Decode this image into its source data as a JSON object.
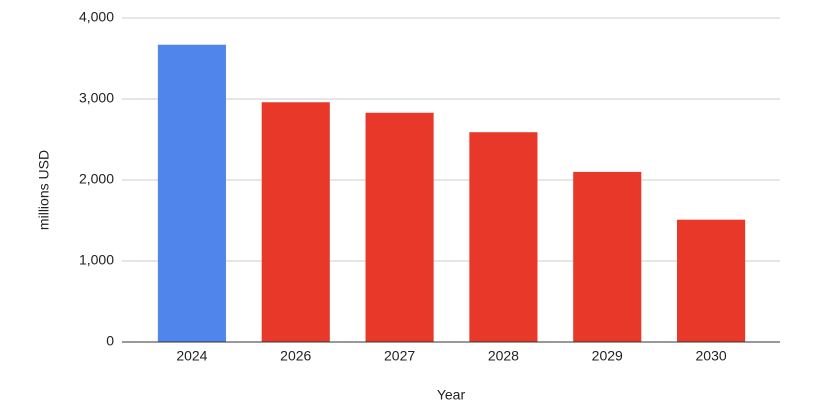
{
  "chart_data": {
    "type": "bar",
    "x_label": "Year",
    "y_label": "millions USD",
    "categories": [
      "2024",
      "2026",
      "2027",
      "2028",
      "2029",
      "2030"
    ],
    "values": [
      3670,
      2960,
      2830,
      2590,
      2100,
      1510
    ],
    "colors": [
      "#5086ec",
      "#e8382a",
      "#e8382a",
      "#e8382a",
      "#e8382a",
      "#e8382a"
    ],
    "ylim": [
      0,
      4000
    ],
    "yticks": [
      0,
      {
        "value": 1000,
        "label": "1,000"
      },
      {
        "value": 2000,
        "label": "2,000"
      },
      {
        "value": 3000,
        "label": "3,000"
      },
      {
        "value": 4000,
        "label": "4,000"
      }
    ],
    "grid": true
  }
}
